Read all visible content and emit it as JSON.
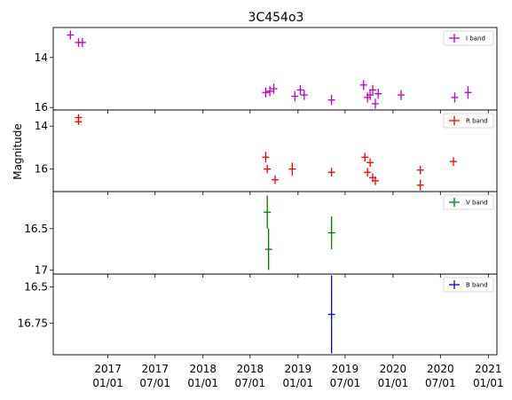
{
  "chart_data": {
    "type": "scatter",
    "title": "3C454o3",
    "ylabel": "Magnitude",
    "xlabel": "",
    "invert_y": true,
    "x_ticks": [
      "2017\n01/01",
      "2017\n07/01",
      "2018\n01/01",
      "2018\n07/01",
      "2019\n01/01",
      "2019\n07/01",
      "2020\n01/01",
      "2020\n07/01",
      "2021\n01/01"
    ],
    "x_tick_dates": [
      "2017-01-01",
      "2017-07-01",
      "2018-01-01",
      "2018-07-01",
      "2019-01-01",
      "2019-07-01",
      "2020-01-01",
      "2020-07-01",
      "2021-01-01"
    ],
    "xlim": [
      "2016-06-05",
      "2021-02-03"
    ],
    "panels": [
      {
        "band": "I band",
        "color": "#bf00bf",
        "ylim": [
          16.1,
          12.8
        ],
        "yticks": [
          14,
          16
        ],
        "legend": "top-right",
        "points": [
          {
            "x": "2016-08-10",
            "y": 13.1,
            "yerr": 0.18,
            "xerr": 6
          },
          {
            "x": "2016-09-10",
            "y": 13.4,
            "yerr": 0.18,
            "xerr": 6
          },
          {
            "x": "2016-09-25",
            "y": 13.4,
            "yerr": 0.18,
            "xerr": 6
          },
          {
            "x": "2018-08-30",
            "y": 15.4,
            "yerr": 0.2,
            "xerr": 6
          },
          {
            "x": "2018-09-15",
            "y": 15.35,
            "yerr": 0.2,
            "xerr": 6
          },
          {
            "x": "2018-09-30",
            "y": 15.25,
            "yerr": 0.2,
            "xerr": 6
          },
          {
            "x": "2018-12-20",
            "y": 15.55,
            "yerr": 0.2,
            "xerr": 6
          },
          {
            "x": "2019-01-10",
            "y": 15.3,
            "yerr": 0.2,
            "xerr": 6
          },
          {
            "x": "2019-01-25",
            "y": 15.5,
            "yerr": 0.2,
            "xerr": 6
          },
          {
            "x": "2019-05-10",
            "y": 15.7,
            "yerr": 0.2,
            "xerr": 6
          },
          {
            "x": "2019-09-10",
            "y": 15.1,
            "yerr": 0.2,
            "xerr": 6
          },
          {
            "x": "2019-09-25",
            "y": 15.6,
            "yerr": 0.2,
            "xerr": 6
          },
          {
            "x": "2019-10-05",
            "y": 15.5,
            "yerr": 0.2,
            "xerr": 6
          },
          {
            "x": "2019-10-15",
            "y": 15.3,
            "yerr": 0.2,
            "xerr": 6
          },
          {
            "x": "2019-10-25",
            "y": 15.85,
            "yerr": 0.2,
            "xerr": 6
          },
          {
            "x": "2019-11-05",
            "y": 15.45,
            "yerr": 0.2,
            "xerr": 6
          },
          {
            "x": "2020-02-01",
            "y": 15.5,
            "yerr": 0.2,
            "xerr": 6
          },
          {
            "x": "2020-08-25",
            "y": 15.6,
            "yerr": 0.2,
            "xerr": 6
          },
          {
            "x": "2020-10-15",
            "y": 15.4,
            "yerr": 0.25,
            "xerr": 6
          }
        ]
      },
      {
        "band": "R band",
        "color": "#ff0000",
        "ylim": [
          17.05,
          13.25
        ],
        "yticks": [
          14,
          16
        ],
        "legend": "top-right",
        "points": [
          {
            "x": "2016-09-10",
            "y": 13.6,
            "yerr": 0.15,
            "xerr": 6
          },
          {
            "x": "2016-09-10",
            "y": 13.8,
            "yerr": 0.15,
            "xerr": 6
          },
          {
            "x": "2018-08-30",
            "y": 15.45,
            "yerr": 0.25,
            "xerr": 6
          },
          {
            "x": "2018-09-05",
            "y": 16.0,
            "yerr": 0.2,
            "xerr": 6
          },
          {
            "x": "2018-10-05",
            "y": 16.5,
            "yerr": 0.2,
            "xerr": 6
          },
          {
            "x": "2018-12-10",
            "y": 16.0,
            "yerr": 0.3,
            "xerr": 6
          },
          {
            "x": "2019-05-10",
            "y": 16.15,
            "yerr": 0.2,
            "xerr": 6
          },
          {
            "x": "2019-09-15",
            "y": 15.45,
            "yerr": 0.2,
            "xerr": 6
          },
          {
            "x": "2019-09-25",
            "y": 16.15,
            "yerr": 0.2,
            "xerr": 6
          },
          {
            "x": "2019-10-05",
            "y": 15.7,
            "yerr": 0.2,
            "xerr": 6
          },
          {
            "x": "2019-10-15",
            "y": 16.4,
            "yerr": 0.2,
            "xerr": 6
          },
          {
            "x": "2019-10-25",
            "y": 16.55,
            "yerr": 0.2,
            "xerr": 6
          },
          {
            "x": "2020-04-15",
            "y": 16.05,
            "yerr": 0.2,
            "xerr": 6
          },
          {
            "x": "2020-04-15",
            "y": 16.75,
            "yerr": 0.25,
            "xerr": 6
          },
          {
            "x": "2020-08-20",
            "y": 15.65,
            "yerr": 0.2,
            "xerr": 6
          }
        ]
      },
      {
        "band": "V band",
        "color": "#008000",
        "ylim": [
          17.05,
          16.05
        ],
        "yticks": [
          16.5,
          17.0
        ],
        "legend": "top-right",
        "points": [
          {
            "x": "2018-09-05",
            "y": 16.3,
            "yerr": 0.2,
            "xerr": 6
          },
          {
            "x": "2018-09-10",
            "y": 16.75,
            "yerr": 0.25,
            "xerr": 6
          },
          {
            "x": "2019-05-10",
            "y": 16.55,
            "yerr": 0.2,
            "xerr": 6
          }
        ]
      },
      {
        "band": "B band",
        "color": "#0000ff",
        "ylim": [
          16.97,
          16.41
        ],
        "yticks": [
          16.5,
          16.75
        ],
        "legend": "top-right",
        "points": [
          {
            "x": "2019-05-10",
            "y": 16.69,
            "yerr": 0.27,
            "xerr": 6
          }
        ]
      }
    ]
  }
}
